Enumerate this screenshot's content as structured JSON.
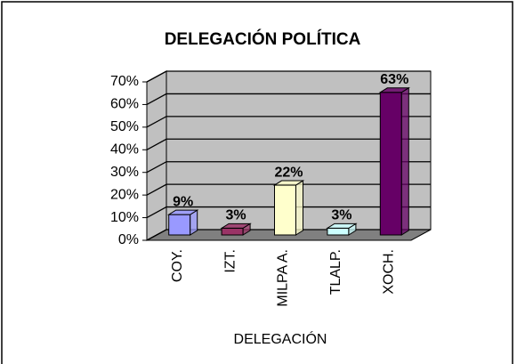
{
  "chart_data": {
    "type": "bar3d",
    "title": "DELEGACIÓN POLÍTICA",
    "categories": [
      "COY.",
      "IZT.",
      "MILPA A.",
      "TLALP.",
      "XOCH."
    ],
    "values": [
      9,
      3,
      22,
      3,
      63
    ],
    "value_labels": [
      "9%",
      "3%",
      "22%",
      "3%",
      "63%"
    ],
    "colors": [
      "#9999ff",
      "#993366",
      "#ffffcc",
      "#ccffff",
      "#660066"
    ],
    "x_label": "DELEGACIÓN",
    "ylim": [
      0,
      70
    ],
    "yticks": [
      {
        "value": 0,
        "label": "0%"
      },
      {
        "value": 10,
        "label": "10%"
      },
      {
        "value": 20,
        "label": "20%"
      },
      {
        "value": 30,
        "label": "30%"
      },
      {
        "value": 40,
        "label": "40%"
      },
      {
        "value": 50,
        "label": "50%"
      },
      {
        "value": 60,
        "label": "60%"
      },
      {
        "value": 70,
        "label": "70%"
      }
    ],
    "grid": true
  }
}
